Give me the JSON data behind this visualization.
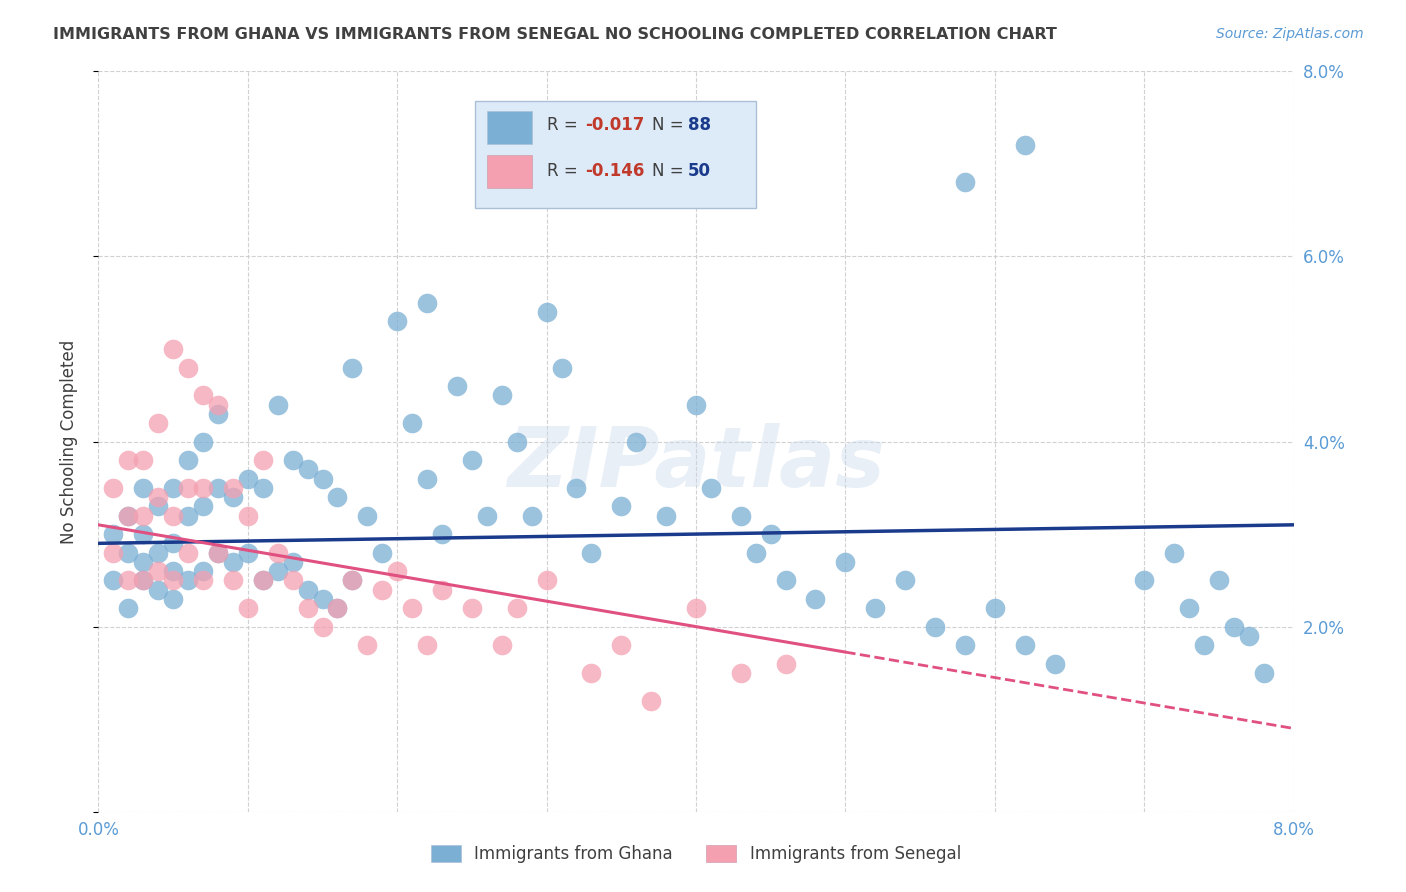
{
  "title": "IMMIGRANTS FROM GHANA VS IMMIGRANTS FROM SENEGAL NO SCHOOLING COMPLETED CORRELATION CHART",
  "source": "Source: ZipAtlas.com",
  "ylabel": "No Schooling Completed",
  "xlim": [
    0.0,
    0.08
  ],
  "ylim": [
    0.0,
    0.08
  ],
  "ytick_vals": [
    0.0,
    0.02,
    0.04,
    0.06,
    0.08
  ],
  "ytick_labels_right": [
    "",
    "2.0%",
    "4.0%",
    "6.0%",
    "8.0%"
  ],
  "xtick_vals": [
    0.0,
    0.01,
    0.02,
    0.03,
    0.04,
    0.05,
    0.06,
    0.07,
    0.08
  ],
  "xtick_labels": [
    "0.0%",
    "",
    "",
    "",
    "",
    "",
    "",
    "",
    "8.0%"
  ],
  "ghana_color": "#7bafd4",
  "senegal_color": "#f4a0b0",
  "ghana_line_color": "#1a3a8c",
  "senegal_line_color": "#e05080",
  "ghana_R": -0.017,
  "ghana_N": 88,
  "senegal_R": -0.146,
  "senegal_N": 50,
  "legend_label_ghana": "Immigrants from Ghana",
  "legend_label_senegal": "Immigrants from Senegal",
  "watermark": "ZIPatlas",
  "background_color": "#ffffff",
  "grid_color": "#cccccc",
  "axis_label_color": "#5b9bd5",
  "title_color": "#404040",
  "legend_box_color": "#ddeaf8",
  "ghana_points_x": [
    0.001,
    0.001,
    0.002,
    0.002,
    0.002,
    0.003,
    0.003,
    0.003,
    0.003,
    0.004,
    0.004,
    0.004,
    0.005,
    0.005,
    0.005,
    0.005,
    0.006,
    0.006,
    0.006,
    0.007,
    0.007,
    0.007,
    0.008,
    0.008,
    0.008,
    0.009,
    0.009,
    0.01,
    0.01,
    0.011,
    0.011,
    0.012,
    0.012,
    0.013,
    0.013,
    0.014,
    0.014,
    0.015,
    0.015,
    0.016,
    0.016,
    0.017,
    0.017,
    0.018,
    0.019,
    0.02,
    0.021,
    0.022,
    0.022,
    0.023,
    0.024,
    0.025,
    0.026,
    0.027,
    0.028,
    0.029,
    0.03,
    0.031,
    0.032,
    0.033,
    0.035,
    0.036,
    0.038,
    0.04,
    0.041,
    0.043,
    0.044,
    0.045,
    0.046,
    0.048,
    0.05,
    0.052,
    0.054,
    0.056,
    0.058,
    0.06,
    0.062,
    0.064,
    0.07,
    0.072,
    0.073,
    0.074,
    0.075,
    0.076,
    0.077,
    0.078,
    0.062,
    0.058
  ],
  "ghana_points_y": [
    0.025,
    0.03,
    0.022,
    0.028,
    0.032,
    0.025,
    0.027,
    0.03,
    0.035,
    0.024,
    0.028,
    0.033,
    0.023,
    0.026,
    0.029,
    0.035,
    0.025,
    0.032,
    0.038,
    0.026,
    0.033,
    0.04,
    0.028,
    0.035,
    0.043,
    0.027,
    0.034,
    0.028,
    0.036,
    0.025,
    0.035,
    0.026,
    0.044,
    0.027,
    0.038,
    0.024,
    0.037,
    0.023,
    0.036,
    0.022,
    0.034,
    0.025,
    0.048,
    0.032,
    0.028,
    0.053,
    0.042,
    0.036,
    0.055,
    0.03,
    0.046,
    0.038,
    0.032,
    0.045,
    0.04,
    0.032,
    0.054,
    0.048,
    0.035,
    0.028,
    0.033,
    0.04,
    0.032,
    0.044,
    0.035,
    0.032,
    0.028,
    0.03,
    0.025,
    0.023,
    0.027,
    0.022,
    0.025,
    0.02,
    0.018,
    0.022,
    0.018,
    0.016,
    0.025,
    0.028,
    0.022,
    0.018,
    0.025,
    0.02,
    0.019,
    0.015,
    0.072,
    0.068
  ],
  "senegal_points_x": [
    0.001,
    0.001,
    0.002,
    0.002,
    0.002,
    0.003,
    0.003,
    0.003,
    0.004,
    0.004,
    0.004,
    0.005,
    0.005,
    0.005,
    0.006,
    0.006,
    0.006,
    0.007,
    0.007,
    0.007,
    0.008,
    0.008,
    0.009,
    0.009,
    0.01,
    0.01,
    0.011,
    0.011,
    0.012,
    0.013,
    0.014,
    0.015,
    0.016,
    0.017,
    0.018,
    0.019,
    0.02,
    0.021,
    0.022,
    0.023,
    0.025,
    0.027,
    0.028,
    0.03,
    0.033,
    0.035,
    0.037,
    0.04,
    0.043,
    0.046
  ],
  "senegal_points_y": [
    0.028,
    0.035,
    0.025,
    0.032,
    0.038,
    0.025,
    0.032,
    0.038,
    0.026,
    0.034,
    0.042,
    0.025,
    0.032,
    0.05,
    0.028,
    0.035,
    0.048,
    0.025,
    0.035,
    0.045,
    0.028,
    0.044,
    0.025,
    0.035,
    0.022,
    0.032,
    0.025,
    0.038,
    0.028,
    0.025,
    0.022,
    0.02,
    0.022,
    0.025,
    0.018,
    0.024,
    0.026,
    0.022,
    0.018,
    0.024,
    0.022,
    0.018,
    0.022,
    0.025,
    0.015,
    0.018,
    0.012,
    0.022,
    0.015,
    0.016
  ],
  "ghana_trendline_x": [
    0.0,
    0.08
  ],
  "ghana_trendline_y": [
    0.029,
    0.031
  ],
  "senegal_trendline_x": [
    0.0,
    0.08
  ],
  "senegal_trendline_y": [
    0.031,
    0.009
  ]
}
